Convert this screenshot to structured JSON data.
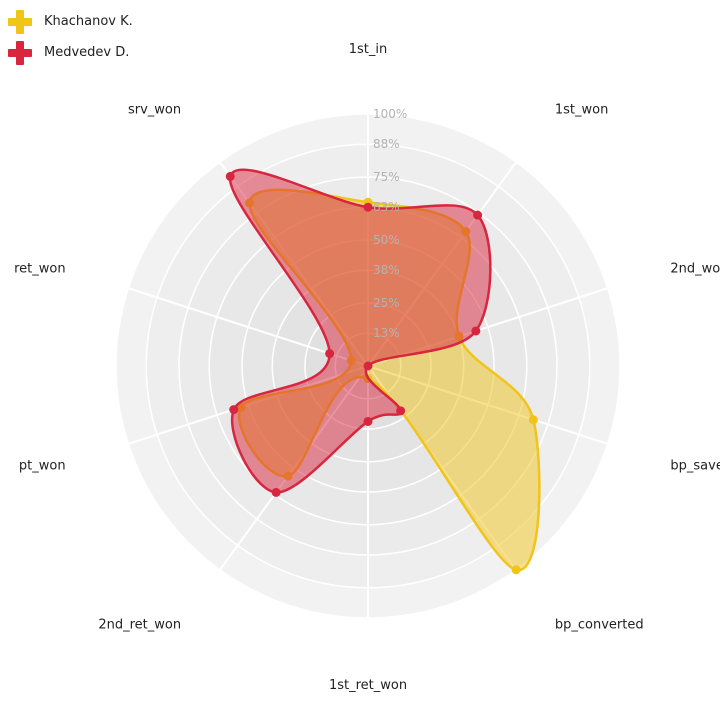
{
  "legend": [
    {
      "name": "Khachanov K.",
      "color": "#f0c419"
    },
    {
      "name": "Medvedev D.",
      "color": "#d7263d"
    }
  ],
  "chart_data": {
    "type": "radar",
    "axes": [
      "1st_in",
      "1st_won",
      "2nd_won",
      "bp_saved",
      "bp_converted",
      "1st_ret_won",
      "2nd_ret_won",
      "pt_won",
      "ret_won",
      "srv_won"
    ],
    "rmax": 100,
    "ticks": [
      {
        "value": 13,
        "label": "13%"
      },
      {
        "value": 25,
        "label": "25%"
      },
      {
        "value": 38,
        "label": "38%"
      },
      {
        "value": 50,
        "label": "50%"
      },
      {
        "value": 63,
        "label": "63%"
      },
      {
        "value": 75,
        "label": "75%"
      },
      {
        "value": 88,
        "label": "88%"
      },
      {
        "value": 100,
        "label": "100%"
      }
    ],
    "series": [
      {
        "name": "Khachanov K.",
        "color": "#f0c419",
        "values": [
          65,
          66,
          38,
          69,
          100,
          5,
          54,
          53,
          7,
          80
        ]
      },
      {
        "name": "Medvedev D.",
        "color": "#d7263d",
        "values": [
          63,
          74,
          45,
          0,
          22,
          22,
          62,
          56,
          16,
          93
        ]
      }
    ]
  }
}
